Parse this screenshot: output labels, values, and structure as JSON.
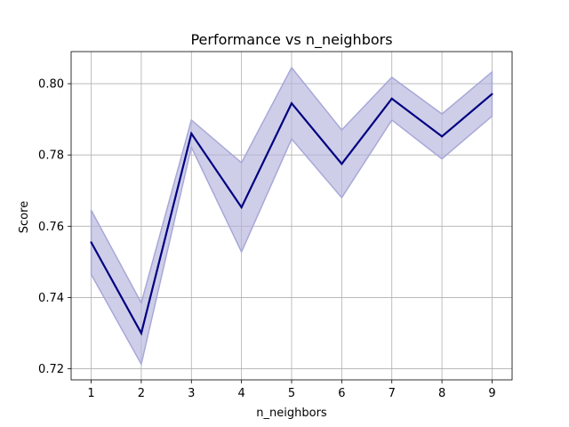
{
  "chart_data": {
    "type": "line",
    "title": "Performance vs n_neighbors",
    "xlabel": "n_neighbors",
    "ylabel": "Score",
    "x": [
      1,
      2,
      3,
      4,
      5,
      6,
      7,
      8,
      9
    ],
    "series": [
      {
        "values": [
          0.7555,
          0.73,
          0.786,
          0.7653,
          0.7945,
          0.7775,
          0.7958,
          0.7852,
          0.7971
        ],
        "upper": [
          0.7645,
          0.7385,
          0.7898,
          0.7778,
          0.8045,
          0.787,
          0.8018,
          0.7915,
          0.8033
        ],
        "lower": [
          0.7465,
          0.7213,
          0.7822,
          0.7528,
          0.7845,
          0.768,
          0.7898,
          0.7789,
          0.7909
        ]
      }
    ],
    "xticks": [
      "1",
      "2",
      "3",
      "4",
      "5",
      "6",
      "7",
      "8",
      "9"
    ],
    "yticks": [
      "0.72",
      "0.74",
      "0.76",
      "0.78",
      "0.80"
    ],
    "xlim": [
      0.6,
      9.4
    ],
    "ylim": [
      0.7169,
      0.809
    ],
    "grid": true,
    "line_color": "#000080",
    "band_color": "#b3b3dd",
    "band_edge_color": "#a8a8d8"
  }
}
